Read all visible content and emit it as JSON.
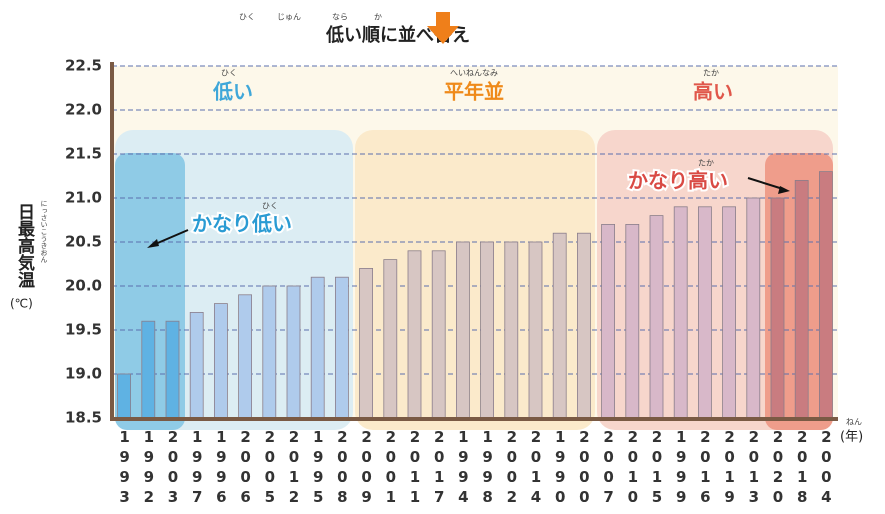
{
  "chart_data": {
    "type": "bar",
    "title": "低い順に並べ替え",
    "title_ruby": [
      "ひく",
      "じゅん",
      "なら",
      "か"
    ],
    "y_label": "日最高気温",
    "y_label_ruby": "にっさいこうきおん",
    "y_unit": "(℃)",
    "x_unit": "(年)",
    "x_unit_ruby": "ねん",
    "regions": [
      {
        "label": "低い",
        "ruby": "ひく"
      },
      {
        "label": "平年並",
        "ruby": "へいねんなみ"
      },
      {
        "label": "高い",
        "ruby": "たか"
      }
    ],
    "annotations": [
      {
        "label": "かなり低い",
        "ruby": "ひく"
      },
      {
        "label": "かなり高い",
        "ruby": "たか"
      }
    ],
    "categories": [
      "1993",
      "1992",
      "2003",
      "1997",
      "1996",
      "2006",
      "2005",
      "2012",
      "1995",
      "2008",
      "2009",
      "2001",
      "2011",
      "2017",
      "1994",
      "1998",
      "2002",
      "2014",
      "1990",
      "2000",
      "2007",
      "2010",
      "2015",
      "1999",
      "2016",
      "2019",
      "2013",
      "2020",
      "2018",
      "2004"
    ],
    "values": [
      19.0,
      19.6,
      19.6,
      19.7,
      19.8,
      19.9,
      20.0,
      20.0,
      20.1,
      20.1,
      20.2,
      20.3,
      20.4,
      20.4,
      20.5,
      20.5,
      20.5,
      20.5,
      20.6,
      20.6,
      20.7,
      20.7,
      20.8,
      20.9,
      20.9,
      20.9,
      21.0,
      21.0,
      21.2,
      21.3
    ],
    "colors": [
      "#5fb2e3",
      "#5fb2e3",
      "#5fb2e3",
      "#afcbec",
      "#afcbec",
      "#afcbec",
      "#afcbec",
      "#afcbec",
      "#afcbec",
      "#afcbec",
      "#d7c6c3",
      "#d7c6c3",
      "#d7c6c3",
      "#d7c6c3",
      "#d7c6c3",
      "#d7c6c3",
      "#d7c6c3",
      "#d7c6c3",
      "#d7c6c3",
      "#d7c6c3",
      "#d8b8c9",
      "#d8b8c9",
      "#d8b8c9",
      "#d8b8c9",
      "#d8b8c9",
      "#d8b8c9",
      "#d8b8c9",
      "#c97c80",
      "#c97c80",
      "#c97c80"
    ],
    "ylim": [
      18.5,
      22.5
    ],
    "yticks": [
      18.5,
      {
        "value": 19.0,
        "label": "19.0"
      },
      19.5,
      {
        "value": 20.0,
        "label": "20.0"
      },
      20.5,
      {
        "value": 21.0,
        "label": "21.0"
      },
      21.5,
      {
        "value": 22.0,
        "label": "22.0"
      },
      22.5
    ],
    "grid": true
  }
}
